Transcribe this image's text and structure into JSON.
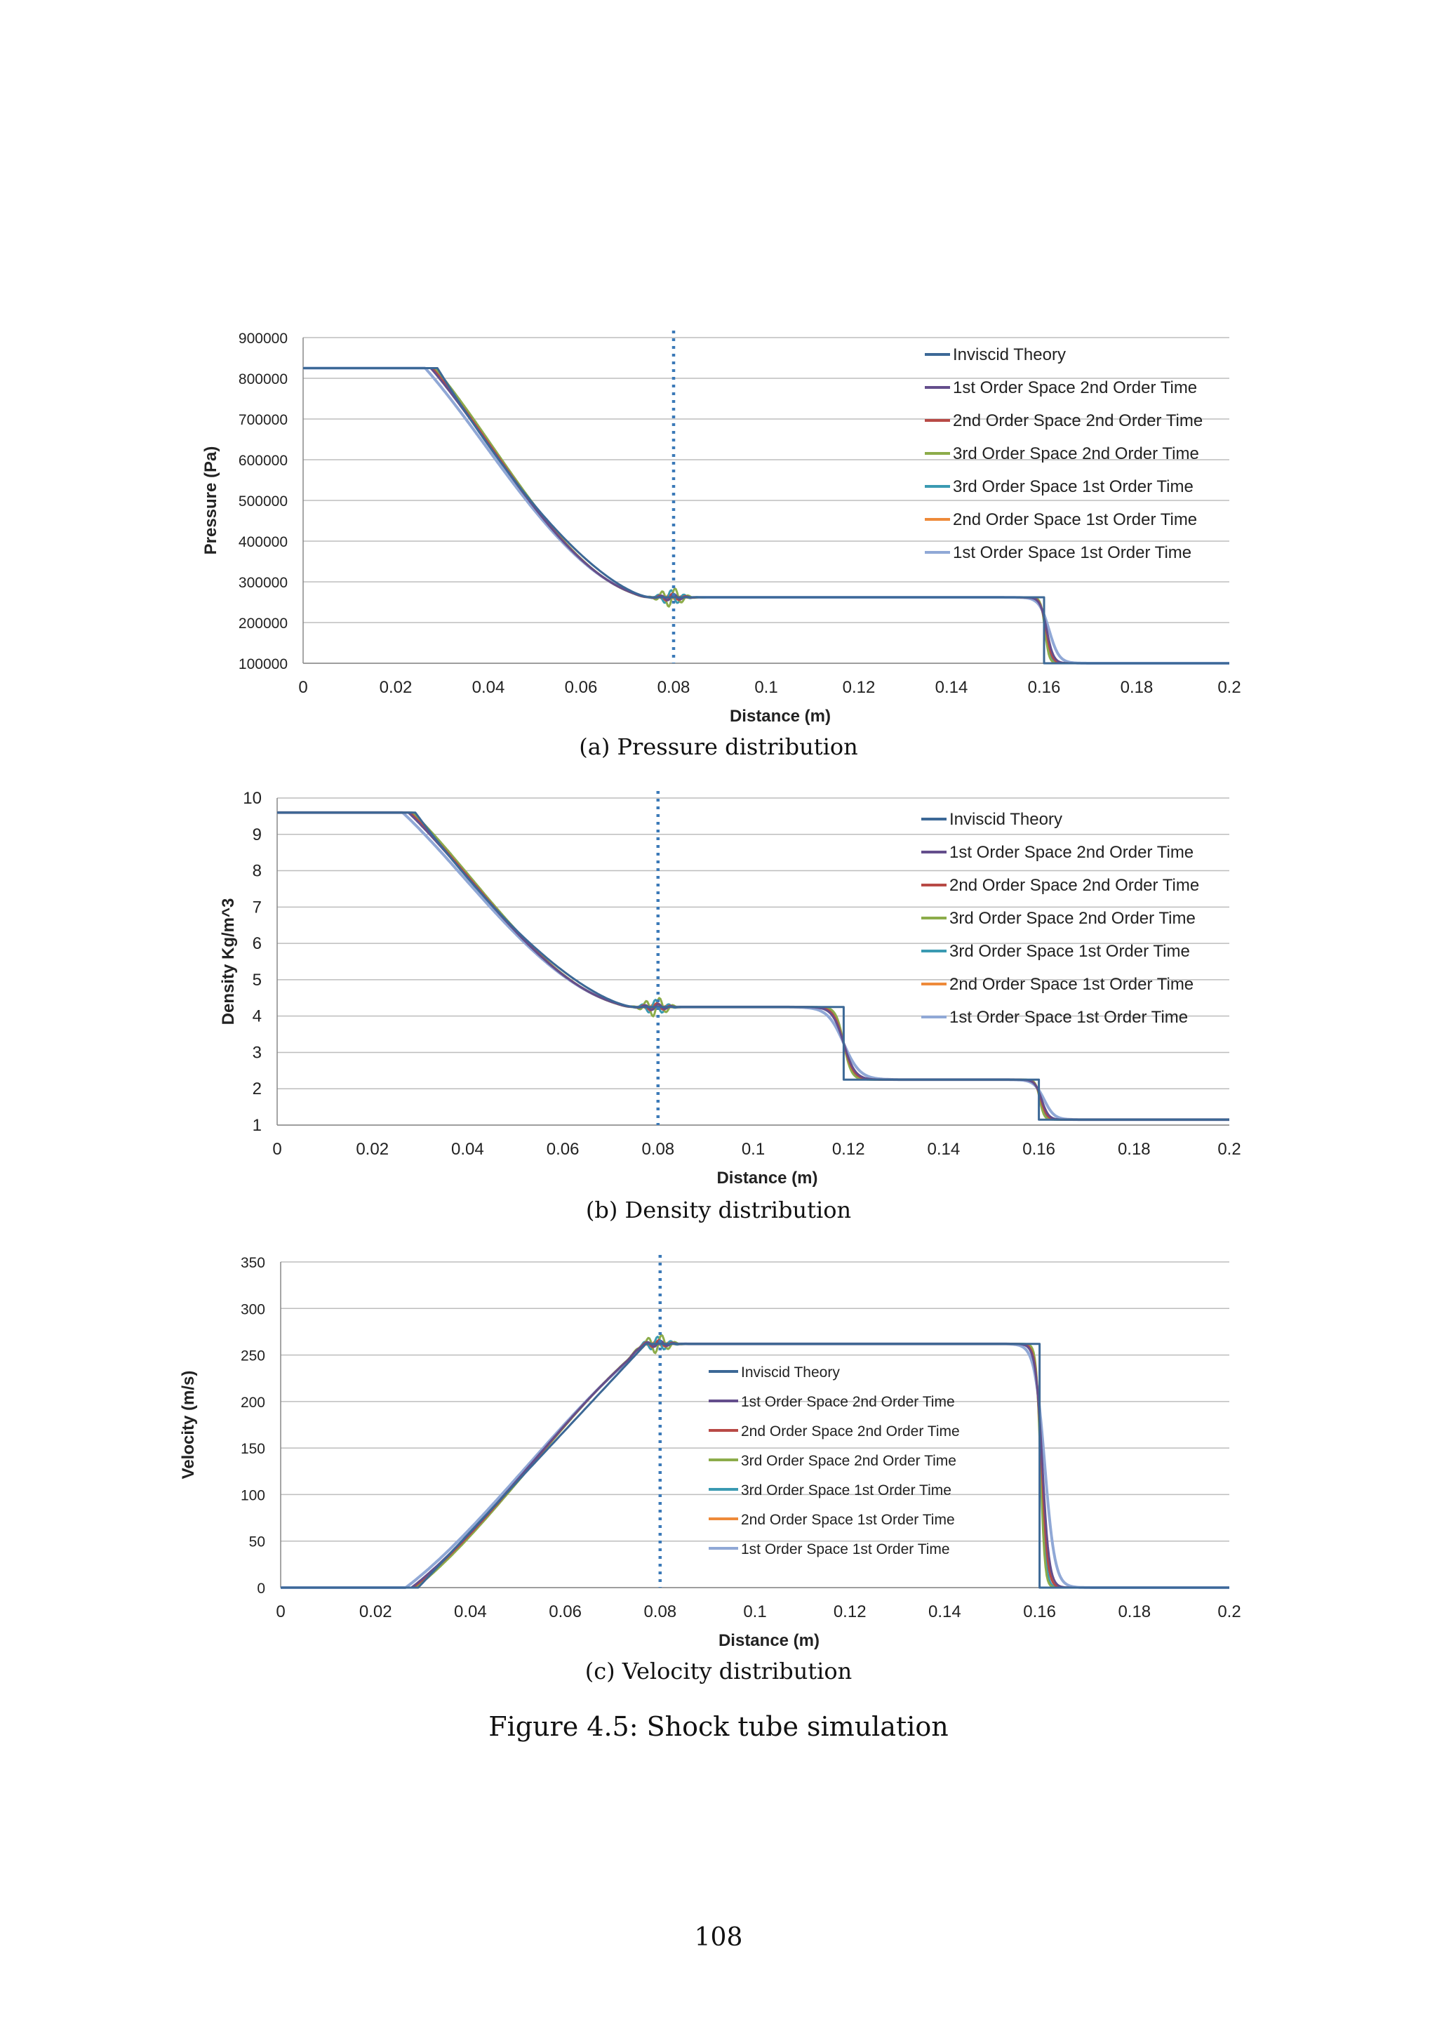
{
  "chart_data": [
    {
      "type": "line",
      "xlabel": "Distance (m)",
      "ylabel": "Pressure (Pa)",
      "xlim": [
        0,
        0.2
      ],
      "ylim": [
        100000,
        900000
      ],
      "xticks": [
        "0",
        "0.02",
        "0.04",
        "0.06",
        "0.08",
        "0.1",
        "0.12",
        "0.14",
        "0.16",
        "0.18",
        "0.2"
      ],
      "yticks": [
        "100000",
        "200000",
        "300000",
        "400000",
        "500000",
        "600000",
        "700000",
        "800000",
        "900000"
      ],
      "grid": true,
      "legend_position": "top-right",
      "vline_x": 0.08,
      "profile": {
        "left": 825000,
        "right": 100000,
        "tail_x": 0.075,
        "mid_value": 262000,
        "contact_x": null,
        "shock_x": 0.16,
        "plateau_value": 262000
      },
      "series": [
        {
          "name": "Inviscid Theory",
          "color": "#3c6896"
        },
        {
          "name": "1st Order Space 2nd Order Time",
          "color": "#644e8c"
        },
        {
          "name": "2nd Order Space 2nd Order Time",
          "color": "#b84a46"
        },
        {
          "name": "3rd Order Space 2nd Order Time",
          "color": "#8cac4a"
        },
        {
          "name": "3rd Order Space 1st Order Time",
          "color": "#3a9ab2"
        },
        {
          "name": "2nd Order Space 1st Order Time",
          "color": "#ee8a3a"
        },
        {
          "name": "1st Order Space 1st Order Time",
          "color": "#90a8d6"
        }
      ],
      "caption": "(a) Pressure distribution"
    },
    {
      "type": "line",
      "xlabel": "Distance (m)",
      "ylabel": "Density Kg/m^3",
      "xlim": [
        0,
        0.2
      ],
      "ylim": [
        1,
        10
      ],
      "xticks": [
        "0",
        "0.02",
        "0.04",
        "0.06",
        "0.08",
        "0.1",
        "0.12",
        "0.14",
        "0.16",
        "0.18",
        "0.2"
      ],
      "yticks": [
        "1",
        "2",
        "3",
        "4",
        "5",
        "6",
        "7",
        "8",
        "9",
        "10"
      ],
      "grid": true,
      "legend_position": "top-right",
      "vline_x": 0.08,
      "profile": {
        "left": 9.6,
        "right": 1.15,
        "tail_x": 0.075,
        "mid_value": 4.25,
        "contact_x": 0.119,
        "shock_x": 0.16,
        "plateau_value": 2.25
      },
      "series": [
        {
          "name": "Inviscid Theory",
          "color": "#3c6896"
        },
        {
          "name": "1st Order Space 2nd Order Time",
          "color": "#644e8c"
        },
        {
          "name": "2nd Order Space 2nd Order Time",
          "color": "#b84a46"
        },
        {
          "name": "3rd Order Space 2nd Order Time",
          "color": "#8cac4a"
        },
        {
          "name": "3rd Order Space 1st Order Time",
          "color": "#3a9ab2"
        },
        {
          "name": "2nd Order Space 1st Order Time",
          "color": "#ee8a3a"
        },
        {
          "name": "1st Order Space 1st Order Time",
          "color": "#90a8d6"
        }
      ],
      "caption": "(b) Density distribution"
    },
    {
      "type": "line",
      "xlabel": "Distance (m)",
      "ylabel": "Velocity (m/s)",
      "xlim": [
        0,
        0.2
      ],
      "ylim": [
        0,
        350
      ],
      "xticks": [
        "0",
        "0.02",
        "0.04",
        "0.06",
        "0.08",
        "0.1",
        "0.12",
        "0.14",
        "0.16",
        "0.18",
        "0.2"
      ],
      "yticks": [
        "0",
        "50",
        "100",
        "150",
        "200",
        "250",
        "300",
        "350"
      ],
      "grid": true,
      "legend_position": "center",
      "vline_x": 0.08,
      "profile": {
        "left": 0,
        "right": 0,
        "tail_x": 0.077,
        "mid_value": 262,
        "contact_x": null,
        "shock_x": 0.16,
        "plateau_value": 262
      },
      "series": [
        {
          "name": "Inviscid Theory",
          "color": "#3c6896"
        },
        {
          "name": "1st Order Space 2nd Order Time",
          "color": "#644e8c"
        },
        {
          "name": "2nd Order Space 2nd Order Time",
          "color": "#b84a46"
        },
        {
          "name": "3rd Order Space 2nd Order Time",
          "color": "#8cac4a"
        },
        {
          "name": "3rd Order Space 1st Order Time",
          "color": "#3a9ab2"
        },
        {
          "name": "2nd Order Space 1st Order Time",
          "color": "#ee8a3a"
        },
        {
          "name": "1st Order Space 1st Order Time",
          "color": "#90a8d6"
        }
      ],
      "caption": "(c) Velocity distribution"
    }
  ],
  "figure_caption": "Figure 4.5: Shock tube simulation",
  "page_number": "108"
}
